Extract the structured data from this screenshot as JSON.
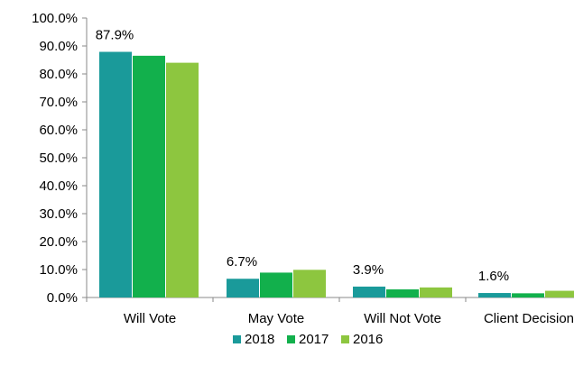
{
  "chart_data": {
    "type": "bar",
    "categories": [
      "Will Vote",
      "May Vote",
      "Will Not Vote",
      "Client Decision"
    ],
    "series": [
      {
        "name": "2018",
        "values": [
          87.9,
          6.7,
          3.9,
          1.6
        ],
        "color": "#1a9a9a"
      },
      {
        "name": "2017",
        "values": [
          86.5,
          8.9,
          2.9,
          1.5
        ],
        "color": "#12b04c"
      },
      {
        "name": "2016",
        "values": [
          84.0,
          9.9,
          3.6,
          2.4
        ],
        "color": "#8dc63f"
      }
    ],
    "data_labels": [
      "87.9%",
      "6.7%",
      "3.9%",
      "1.6%"
    ],
    "ylim": [
      0,
      100
    ],
    "y_ticks": [
      "0.0%",
      "10.0%",
      "20.0%",
      "30.0%",
      "40.0%",
      "50.0%",
      "60.0%",
      "70.0%",
      "80.0%",
      "90.0%",
      "100.0%"
    ],
    "legend_position": "bottom-center",
    "grid": false,
    "title": "",
    "xlabel": "",
    "ylabel": ""
  }
}
